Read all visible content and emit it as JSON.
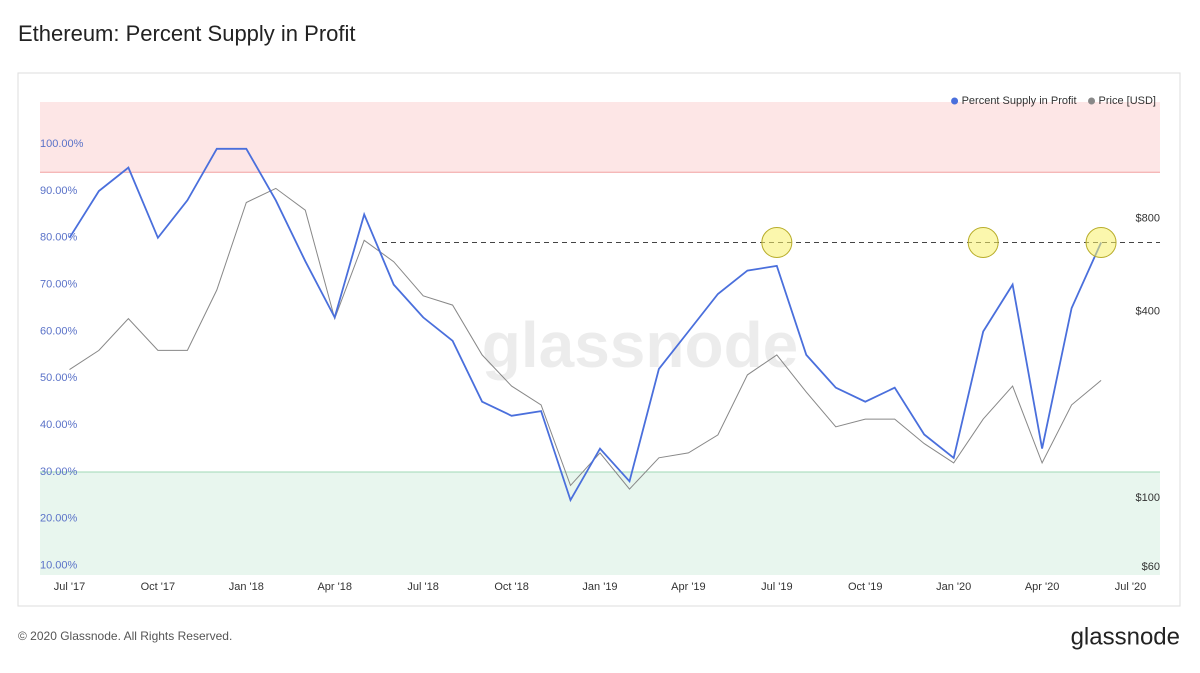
{
  "chart_data": {
    "type": "line",
    "title": "Ethereum: Percent Supply in Profit",
    "watermark": "glassnode",
    "footer": "© 2020 Glassnode. All Rights Reserved.",
    "brand": "glassnode",
    "x": [
      "2017-07",
      "2017-08",
      "2017-09",
      "2017-10",
      "2017-11",
      "2017-12",
      "2018-01",
      "2018-02",
      "2018-03",
      "2018-04",
      "2018-05",
      "2018-06",
      "2018-07",
      "2018-08",
      "2018-09",
      "2018-10",
      "2018-11",
      "2018-12",
      "2019-01",
      "2019-02",
      "2019-03",
      "2019-04",
      "2019-05",
      "2019-06",
      "2019-07",
      "2019-08",
      "2019-09",
      "2019-10",
      "2019-11",
      "2019-12",
      "2020-01",
      "2020-02",
      "2020-03",
      "2020-04",
      "2020-05",
      "2020-06"
    ],
    "xlim": [
      "2017-06",
      "2020-08"
    ],
    "xticks": [
      {
        "value": "2017-07",
        "label": "Jul '17"
      },
      {
        "value": "2017-10",
        "label": "Oct '17"
      },
      {
        "value": "2018-01",
        "label": "Jan '18"
      },
      {
        "value": "2018-04",
        "label": "Apr '18"
      },
      {
        "value": "2018-07",
        "label": "Jul '18"
      },
      {
        "value": "2018-10",
        "label": "Oct '18"
      },
      {
        "value": "2019-01",
        "label": "Jan '19"
      },
      {
        "value": "2019-04",
        "label": "Apr '19"
      },
      {
        "value": "2019-07",
        "label": "Jul '19"
      },
      {
        "value": "2019-10",
        "label": "Oct '19"
      },
      {
        "value": "2020-01",
        "label": "Jan '20"
      },
      {
        "value": "2020-04",
        "label": "Apr '20"
      },
      {
        "value": "2020-07",
        "label": "Jul '20"
      }
    ],
    "ylim": [
      8,
      109
    ],
    "yticks": [
      {
        "value": 10,
        "label": "10.00%"
      },
      {
        "value": 20,
        "label": "20.00%"
      },
      {
        "value": 30,
        "label": "30.00%"
      },
      {
        "value": 40,
        "label": "40.00%"
      },
      {
        "value": 50,
        "label": "50.00%"
      },
      {
        "value": 60,
        "label": "60.00%"
      },
      {
        "value": 70,
        "label": "70.00%"
      },
      {
        "value": 80,
        "label": "80.00%"
      },
      {
        "value": 90,
        "label": "90.00%"
      },
      {
        "value": 100,
        "label": "100.00%"
      }
    ],
    "y2lim": [
      56.5,
      1900
    ],
    "y2scale": "log",
    "y2ticks": [
      {
        "value": 60,
        "label": "$60"
      },
      {
        "value": 100,
        "label": "$100"
      },
      {
        "value": 400,
        "label": "$400"
      },
      {
        "value": 800,
        "label": "$800"
      }
    ],
    "zones": [
      {
        "from": 94,
        "to": 109,
        "color": "#fde6e6",
        "line": "#f2a0a0"
      },
      {
        "from": 8,
        "to": 30,
        "color": "#e8f6ee",
        "line": "#9fd8b5"
      }
    ],
    "reference_lines": [
      {
        "value": 79,
        "color": "#444444"
      }
    ],
    "highlights": [
      {
        "x": "2019-07",
        "y": 79
      },
      {
        "x": "2020-02",
        "y": 79
      },
      {
        "x": "2020-06",
        "y": 79
      }
    ],
    "legend": "top-right",
    "series": [
      {
        "name": "Percent Supply in Profit",
        "color": "#4a6fdc",
        "values": [
          80,
          90,
          95,
          80,
          88,
          99,
          99,
          88,
          75,
          63,
          85,
          70,
          63,
          58,
          45,
          42,
          43,
          24,
          35,
          28,
          52,
          60,
          68,
          73,
          74,
          55,
          48,
          45,
          48,
          38,
          33,
          60,
          70,
          35,
          65,
          79
        ]
      },
      {
        "name": "Price [USD]",
        "color": "#888888",
        "axis": "y2",
        "values": [
          260,
          300,
          380,
          300,
          300,
          470,
          900,
          1000,
          850,
          380,
          680,
          580,
          450,
          420,
          290,
          230,
          200,
          110,
          140,
          107,
          135,
          140,
          160,
          250,
          290,
          220,
          170,
          180,
          180,
          150,
          130,
          180,
          230,
          130,
          200,
          240
        ]
      }
    ]
  }
}
